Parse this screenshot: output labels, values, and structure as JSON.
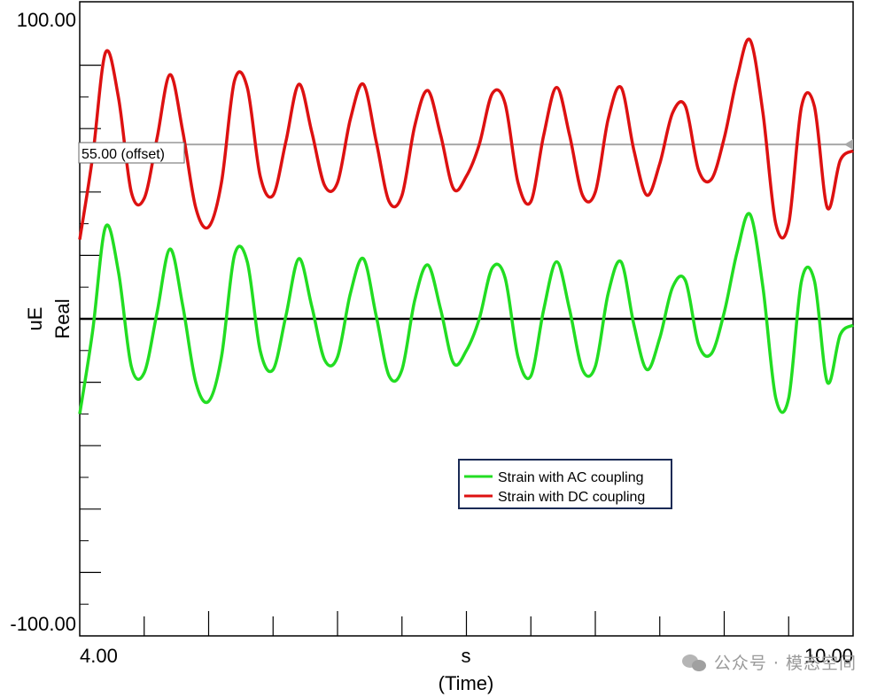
{
  "chart_data": {
    "type": "line",
    "x": [
      4.0,
      4.1,
      4.2,
      4.3,
      4.4,
      4.5,
      4.6,
      4.7,
      4.8,
      4.9,
      5.0,
      5.1,
      5.2,
      5.3,
      5.4,
      5.5,
      5.6,
      5.7,
      5.8,
      5.9,
      6.0,
      6.1,
      6.2,
      6.3,
      6.4,
      6.5,
      6.6,
      6.7,
      6.8,
      6.9,
      7.0,
      7.1,
      7.2,
      7.3,
      7.4,
      7.5,
      7.6,
      7.7,
      7.8,
      7.9,
      8.0,
      8.1,
      8.2,
      8.3,
      8.4,
      8.5,
      8.6,
      8.7,
      8.8,
      8.9,
      9.0,
      9.1,
      9.2,
      9.3,
      9.4,
      9.5,
      9.6,
      9.7,
      9.8,
      9.9,
      10.0
    ],
    "series": [
      {
        "name": "Strain with AC coupling",
        "color": "#22dd22",
        "values": [
          -30,
          -4,
          29,
          15,
          -15,
          -17,
          2,
          22,
          4,
          -20,
          -26,
          -12,
          20,
          18,
          -10,
          -16,
          1,
          19,
          4,
          -13,
          -12,
          8,
          19,
          1,
          -18,
          -16,
          6,
          17,
          3,
          -14,
          -10,
          0,
          16,
          13,
          -12,
          -18,
          3,
          18,
          3,
          -16,
          -15,
          8,
          18,
          -2,
          -16,
          -6,
          10,
          12,
          -8,
          -11,
          2,
          21,
          33,
          10,
          -25,
          -25,
          12,
          12,
          -20,
          -5,
          -2
        ]
      },
      {
        "name": "Strain with DC coupling",
        "color": "#dd1111",
        "values": [
          25,
          51,
          84,
          70,
          40,
          38,
          57,
          77,
          59,
          35,
          29,
          43,
          75,
          73,
          45,
          39,
          56,
          74,
          59,
          42,
          43,
          63,
          74,
          56,
          37,
          39,
          61,
          72,
          58,
          41,
          45,
          55,
          71,
          68,
          43,
          37,
          58,
          73,
          58,
          39,
          40,
          63,
          73,
          53,
          39,
          49,
          65,
          67,
          47,
          44,
          57,
          76,
          88,
          65,
          30,
          30,
          67,
          67,
          35,
          50,
          53
        ]
      }
    ],
    "x_ticks": [
      "4.00",
      "10.00"
    ],
    "xlim": [
      4.0,
      10.0
    ],
    "ylim": [
      -100.0,
      100.0
    ],
    "y_ticks": [
      "100.00",
      "-100.00"
    ],
    "xlabel_unit": "s",
    "xlabel": "(Time)",
    "ylabel_unit": "uE",
    "ylabel": "Real",
    "zero_line": 0,
    "offset_line": {
      "value": 55.0,
      "label": "55.00 (offset)"
    },
    "legend": {
      "placement": "lower-center-right",
      "entries": [
        "Strain with AC coupling",
        "Strain with DC coupling"
      ]
    },
    "grid": false
  },
  "watermark": {
    "text": "公众号 · 模态空间",
    "icon": "wechat-icon"
  }
}
